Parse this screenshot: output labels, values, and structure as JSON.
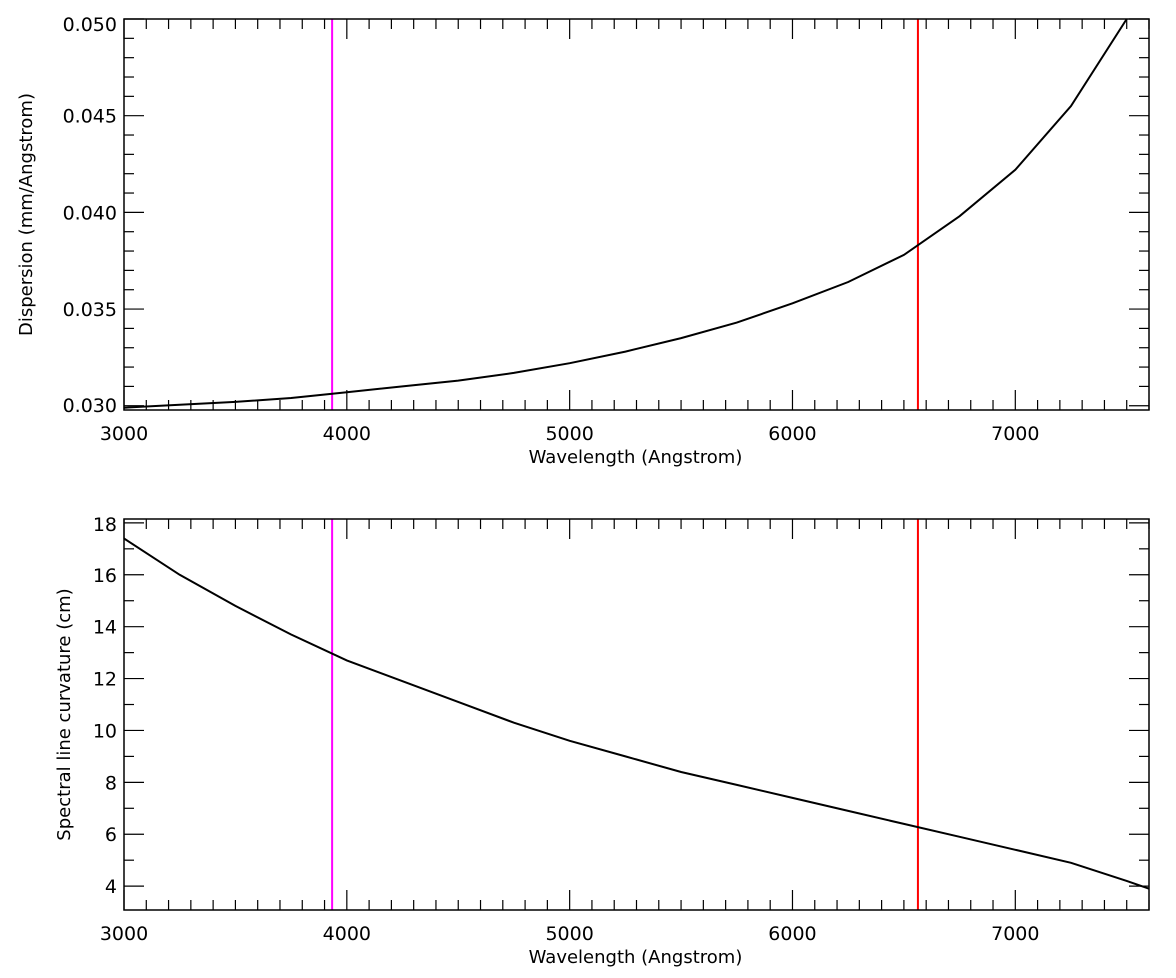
{
  "chart_data": [
    {
      "type": "line",
      "title": "",
      "xlabel": "Wavelength (Angstrom)",
      "ylabel": "Dispersion (mm/Angstrom)",
      "xlim": [
        3000,
        7600
      ],
      "ylim": [
        0.02978,
        0.05
      ],
      "xticks": [
        3000,
        4000,
        5000,
        6000,
        7000
      ],
      "xtick_labels": [
        "3000",
        "4000",
        "5000",
        "6000",
        "7000"
      ],
      "xminor": 100,
      "yticks": [
        0.03,
        0.035,
        0.04,
        0.045,
        0.05
      ],
      "ytick_labels": [
        "0.030",
        "0.035",
        "0.040",
        "0.045",
        "0.050"
      ],
      "yminor": 0.001,
      "grid": false,
      "series": [
        {
          "name": "dispersion",
          "color": "#000000",
          "x": [
            3000,
            3250,
            3500,
            3750,
            4000,
            4250,
            4500,
            4750,
            5000,
            5250,
            5500,
            5750,
            6000,
            6250,
            6500,
            6750,
            7000,
            7250,
            7500
          ],
          "y": [
            0.0299,
            0.03005,
            0.0302,
            0.0304,
            0.0307,
            0.031,
            0.0313,
            0.0317,
            0.0322,
            0.0328,
            0.0335,
            0.0343,
            0.0353,
            0.0364,
            0.0378,
            0.0398,
            0.0422,
            0.0455,
            0.05
          ]
        }
      ],
      "vlines": [
        {
          "x": 3934,
          "color": "#ff00ff"
        },
        {
          "x": 6563,
          "color": "#ff0000"
        }
      ]
    },
    {
      "type": "line",
      "title": "",
      "xlabel": "Wavelength (Angstrom)",
      "ylabel": "Spectral line curvature (cm)",
      "xlim": [
        3000,
        7600
      ],
      "ylim": [
        3.08,
        18.15
      ],
      "xticks": [
        3000,
        4000,
        5000,
        6000,
        7000
      ],
      "xtick_labels": [
        "3000",
        "4000",
        "5000",
        "6000",
        "7000"
      ],
      "xminor": 100,
      "yticks": [
        4,
        6,
        8,
        10,
        12,
        14,
        16,
        18
      ],
      "ytick_labels": [
        "4",
        "6",
        "8",
        "10",
        "12",
        "14",
        "16",
        "18"
      ],
      "yminor": 1,
      "grid": false,
      "series": [
        {
          "name": "curvature",
          "color": "#000000",
          "x": [
            3000,
            3250,
            3500,
            3750,
            4000,
            4250,
            4500,
            4750,
            5000,
            5250,
            5500,
            5750,
            6000,
            6250,
            6500,
            6750,
            7000,
            7250,
            7500,
            7600
          ],
          "y": [
            17.4,
            16.0,
            14.8,
            13.7,
            12.7,
            11.9,
            11.1,
            10.3,
            9.6,
            9.0,
            8.4,
            7.9,
            7.4,
            6.9,
            6.4,
            5.9,
            5.4,
            4.9,
            4.2,
            3.9
          ]
        }
      ],
      "vlines": [
        {
          "x": 3934,
          "color": "#ff00ff"
        },
        {
          "x": 6563,
          "color": "#ff0000"
        }
      ]
    }
  ]
}
